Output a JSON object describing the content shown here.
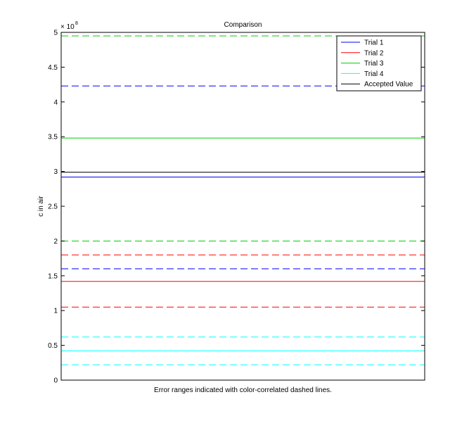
{
  "chart_data": {
    "type": "line",
    "title": "Comparison",
    "xlabel": "Error ranges indicated with color-correlated dashed lines.",
    "ylabel": "c in air",
    "exponent_base": "× 10",
    "exponent_power": "8",
    "ylim": [
      0,
      5
    ],
    "yticks": [
      0,
      0.5,
      1,
      1.5,
      2,
      2.5,
      3,
      3.5,
      4,
      4.5,
      5
    ],
    "ytick_labels": [
      "0",
      "0.5",
      "1",
      "1.5",
      "2",
      "2.5",
      "3",
      "3.5",
      "4",
      "4.5",
      "5"
    ],
    "grid": false,
    "legend_position": "top-right",
    "series": [
      {
        "name": "Trial 1",
        "color": "#0000ff",
        "value": 2.92,
        "error_low": 1.6,
        "error_high": 4.23
      },
      {
        "name": "Trial 2",
        "color": "#ff0000",
        "value": 1.42,
        "error_low": 1.05,
        "error_high": 1.8
      },
      {
        "name": "Trial 3",
        "color": "#00cc00",
        "value": 3.48,
        "error_low": 2.0,
        "error_high": 4.95
      },
      {
        "name": "Trial 4",
        "color": "#00ffff",
        "value": 0.42,
        "error_low": 0.22,
        "error_high": 0.62
      },
      {
        "name": "Accepted Value",
        "color": "#000000",
        "value": 2.99
      }
    ]
  }
}
